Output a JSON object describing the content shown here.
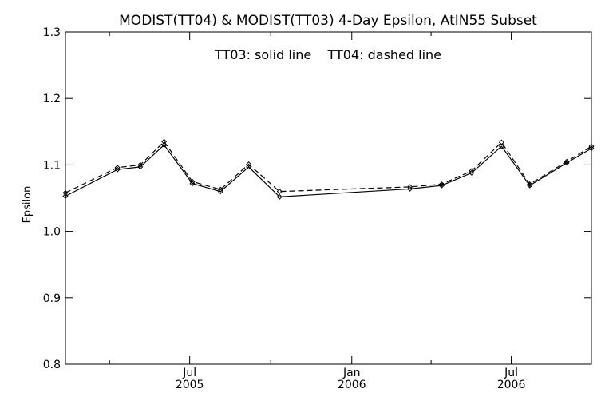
{
  "chart_data": {
    "type": "line",
    "title": "MODIST(TT04) & MODIST(TT03) 4-Day Epsilon, AtIN55 Subset",
    "annotation": "TT03: solid line    TT04: dashed line",
    "xlabel": "",
    "ylabel": "Epsilon",
    "xlim": [
      "2005-02-10",
      "2006-09-30"
    ],
    "ylim": [
      0.8,
      1.3
    ],
    "y_ticks": [
      0.8,
      0.9,
      1.0,
      1.1,
      1.2,
      1.3
    ],
    "y_tick_labels": [
      "0.8",
      "0.9",
      "1.0",
      "1.1",
      "1.2",
      "1.3"
    ],
    "x_major_ticks": [
      {
        "date": "2005-07-01",
        "label": "Jul",
        "year": "2005"
      },
      {
        "date": "2006-01-01",
        "label": "Jan",
        "year": "2006"
      },
      {
        "date": "2006-07-01",
        "label": "Jul",
        "year": "2006"
      }
    ],
    "x_minor_ticks": [
      "2005-04-01",
      "2005-10-01",
      "2006-04-01"
    ],
    "grid": false,
    "series": [
      {
        "name": "TT03",
        "style": "solid",
        "points": [
          {
            "x": "2005-02-10",
            "y": 1.053
          },
          {
            "x": "2005-04-10",
            "y": 1.093
          },
          {
            "x": "2005-05-06",
            "y": 1.097
          },
          {
            "x": "2005-06-02",
            "y": 1.13
          },
          {
            "x": "2005-07-04",
            "y": 1.072
          },
          {
            "x": "2005-08-05",
            "y": 1.06
          },
          {
            "x": "2005-09-06",
            "y": 1.097
          },
          {
            "x": "2005-10-11",
            "y": 1.052
          },
          {
            "x": "2006-03-08",
            "y": 1.064
          },
          {
            "x": "2006-04-13",
            "y": 1.069
          },
          {
            "x": "2006-05-17",
            "y": 1.088
          },
          {
            "x": "2006-06-20",
            "y": 1.128
          },
          {
            "x": "2006-07-22",
            "y": 1.069
          },
          {
            "x": "2006-09-02",
            "y": 1.103
          },
          {
            "x": "2006-09-30",
            "y": 1.125
          }
        ]
      },
      {
        "name": "TT04",
        "style": "dashed",
        "points": [
          {
            "x": "2005-02-10",
            "y": 1.058
          },
          {
            "x": "2005-04-10",
            "y": 1.096
          },
          {
            "x": "2005-05-06",
            "y": 1.1
          },
          {
            "x": "2005-06-02",
            "y": 1.135
          },
          {
            "x": "2005-07-04",
            "y": 1.075
          },
          {
            "x": "2005-08-05",
            "y": 1.063
          },
          {
            "x": "2005-09-06",
            "y": 1.101
          },
          {
            "x": "2005-10-11",
            "y": 1.06
          },
          {
            "x": "2006-03-08",
            "y": 1.067
          },
          {
            "x": "2006-04-13",
            "y": 1.071
          },
          {
            "x": "2006-05-17",
            "y": 1.091
          },
          {
            "x": "2006-06-20",
            "y": 1.134
          },
          {
            "x": "2006-07-22",
            "y": 1.071
          },
          {
            "x": "2006-09-02",
            "y": 1.105
          },
          {
            "x": "2006-09-30",
            "y": 1.128
          }
        ]
      }
    ]
  }
}
